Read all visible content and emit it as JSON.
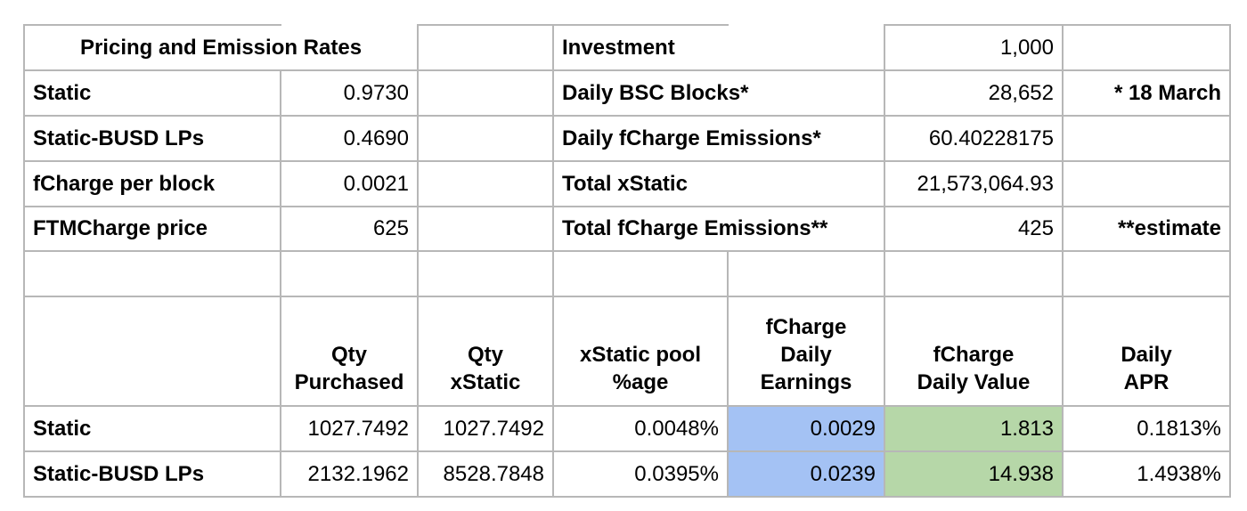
{
  "colors": {
    "highlight_blue": "#a4c2f4",
    "highlight_green": "#b6d7a8",
    "border_gray": "#b7b7b7"
  },
  "pricing_section": {
    "title": "Pricing and Emission Rates",
    "rows": [
      {
        "label": "Static",
        "value": "0.9730"
      },
      {
        "label": "Static-BUSD LPs",
        "value": "0.4690"
      },
      {
        "label": "fCharge per block",
        "value": "0.0021"
      },
      {
        "label": "FTMCharge price",
        "value": "625"
      }
    ]
  },
  "investment_section": {
    "rows": [
      {
        "label": "Investment",
        "value": "1,000",
        "note": ""
      },
      {
        "label": "Daily BSC Blocks*",
        "value": "28,652",
        "note": "* 18 March"
      },
      {
        "label": "Daily fCharge Emissions*",
        "value": "60.40228175",
        "note": ""
      },
      {
        "label": "Total xStatic",
        "value": "21,573,064.93",
        "note": ""
      },
      {
        "label": "Total fCharge Emissions**",
        "value": "425",
        "note": "**estimate"
      }
    ]
  },
  "earnings_table": {
    "headers": {
      "qty_purchased": "Qty\nPurchased",
      "qty_xstatic": "Qty\nxStatic",
      "pool_pct": "xStatic pool\n%age",
      "fcharge_daily_earnings": "fCharge\nDaily\nEarnings",
      "fcharge_daily_value": "fCharge\nDaily Value",
      "daily_apr": "Daily\nAPR"
    },
    "rows": [
      {
        "label": "Static",
        "qty_purchased": "1027.7492",
        "qty_xstatic": "1027.7492",
        "pool_pct": "0.0048%",
        "fcharge_daily_earnings": "0.0029",
        "fcharge_daily_value": "1.813",
        "daily_apr": "0.1813%"
      },
      {
        "label": "Static-BUSD LPs",
        "qty_purchased": "2132.1962",
        "qty_xstatic": "8528.7848",
        "pool_pct": "0.0395%",
        "fcharge_daily_earnings": "0.0239",
        "fcharge_daily_value": "14.938",
        "daily_apr": "1.4938%"
      }
    ]
  }
}
